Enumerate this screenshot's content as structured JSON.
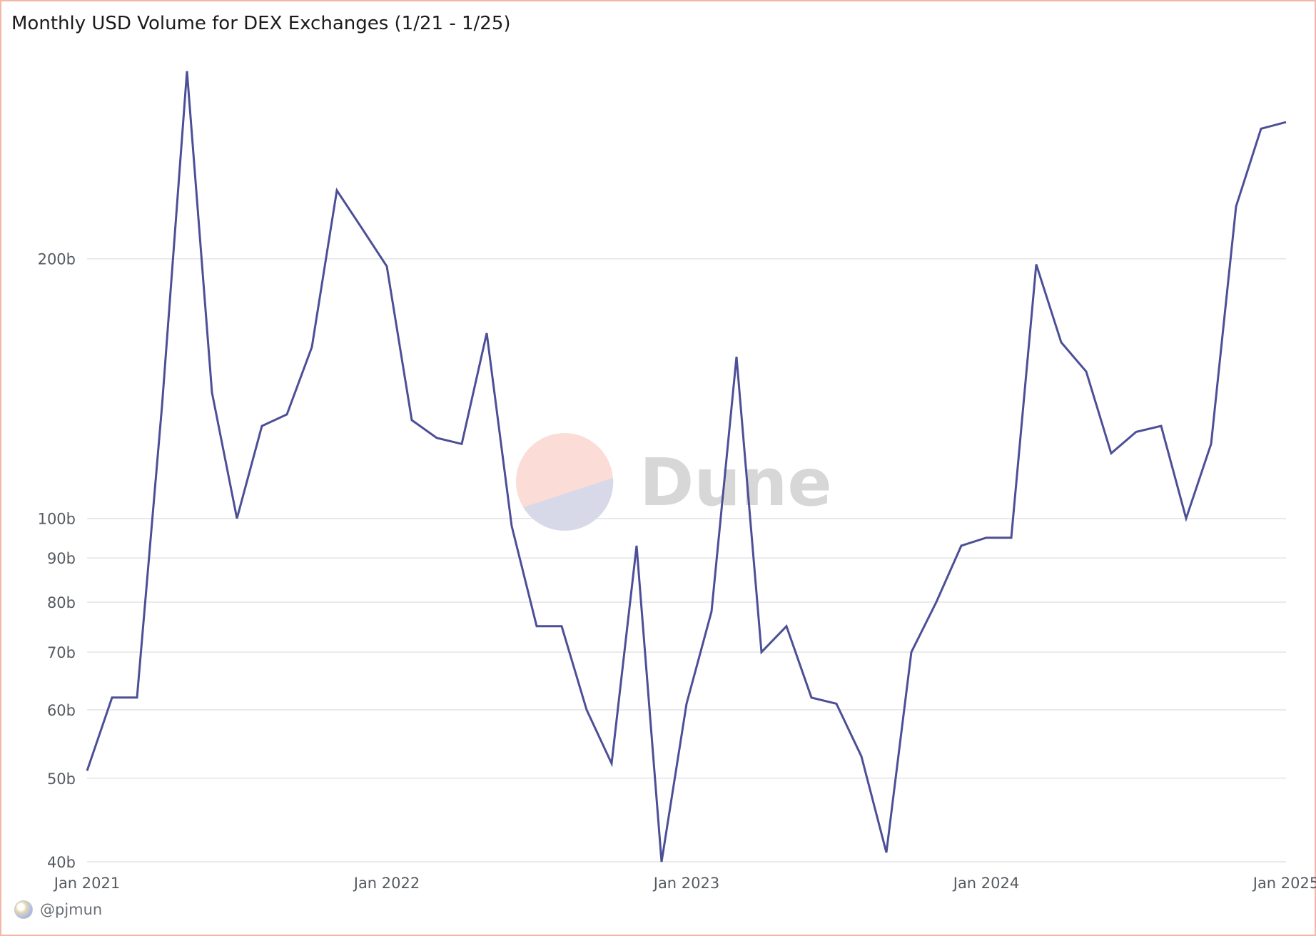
{
  "colors": {
    "line": "#4c4f96",
    "grid": "#e3e4e6",
    "border": "#f4b6a8",
    "watermark_top": "#fbdcd6",
    "watermark_bottom": "#d8d9e8",
    "watermark_text": "#d7d7d7"
  },
  "watermark": {
    "text": "Dune"
  },
  "footer": {
    "handle": "@pjmun",
    "avatar_icon": "avatar-icon"
  },
  "chart_data": {
    "type": "line",
    "title": "Monthly USD Volume for DEX Exchanges (1/21 - 1/25)",
    "xlabel": "",
    "ylabel": "",
    "y_scale": "log",
    "ylim_billions": [
      40,
      340
    ],
    "y_ticks": [
      {
        "value": 40,
        "label": "40b"
      },
      {
        "value": 50,
        "label": "50b"
      },
      {
        "value": 60,
        "label": "60b"
      },
      {
        "value": 70,
        "label": "70b"
      },
      {
        "value": 80,
        "label": "80b"
      },
      {
        "value": 90,
        "label": "90b"
      },
      {
        "value": 100,
        "label": "100b"
      },
      {
        "value": 200,
        "label": "200b"
      }
    ],
    "x_ticks": [
      {
        "date": "2021-01",
        "label": "Jan 2021"
      },
      {
        "date": "2022-01",
        "label": "Jan 2022"
      },
      {
        "date": "2023-01",
        "label": "Jan 2023"
      },
      {
        "date": "2024-01",
        "label": "Jan 2024"
      },
      {
        "date": "2025-01",
        "label": "Jan 2025"
      }
    ],
    "grid": true,
    "legend": "none",
    "x": [
      "2021-01",
      "2021-02",
      "2021-03",
      "2021-04",
      "2021-05",
      "2021-06",
      "2021-07",
      "2021-08",
      "2021-09",
      "2021-10",
      "2021-11",
      "2021-12",
      "2022-01",
      "2022-02",
      "2022-03",
      "2022-04",
      "2022-05",
      "2022-06",
      "2022-07",
      "2022-08",
      "2022-09",
      "2022-10",
      "2022-11",
      "2022-12",
      "2023-01",
      "2023-02",
      "2023-03",
      "2023-04",
      "2023-05",
      "2023-06",
      "2023-07",
      "2023-08",
      "2023-09",
      "2023-10",
      "2023-11",
      "2023-12",
      "2024-01",
      "2024-02",
      "2024-03",
      "2024-04",
      "2024-05",
      "2024-06",
      "2024-07",
      "2024-08",
      "2024-09",
      "2024-10",
      "2024-11",
      "2024-12",
      "2025-01"
    ],
    "series": [
      {
        "values_billions": [
          51,
          62,
          62,
          135,
          330,
          140,
          100,
          128,
          132,
          158,
          240,
          217,
          196,
          130,
          124,
          122,
          164,
          98,
          75,
          75,
          60,
          52,
          93,
          40,
          61,
          78,
          154,
          70,
          75,
          62,
          61,
          53,
          41,
          70,
          80,
          93,
          95,
          95,
          197,
          160,
          148,
          119,
          126,
          128,
          100,
          122,
          230,
          283,
          288
        ]
      }
    ]
  }
}
